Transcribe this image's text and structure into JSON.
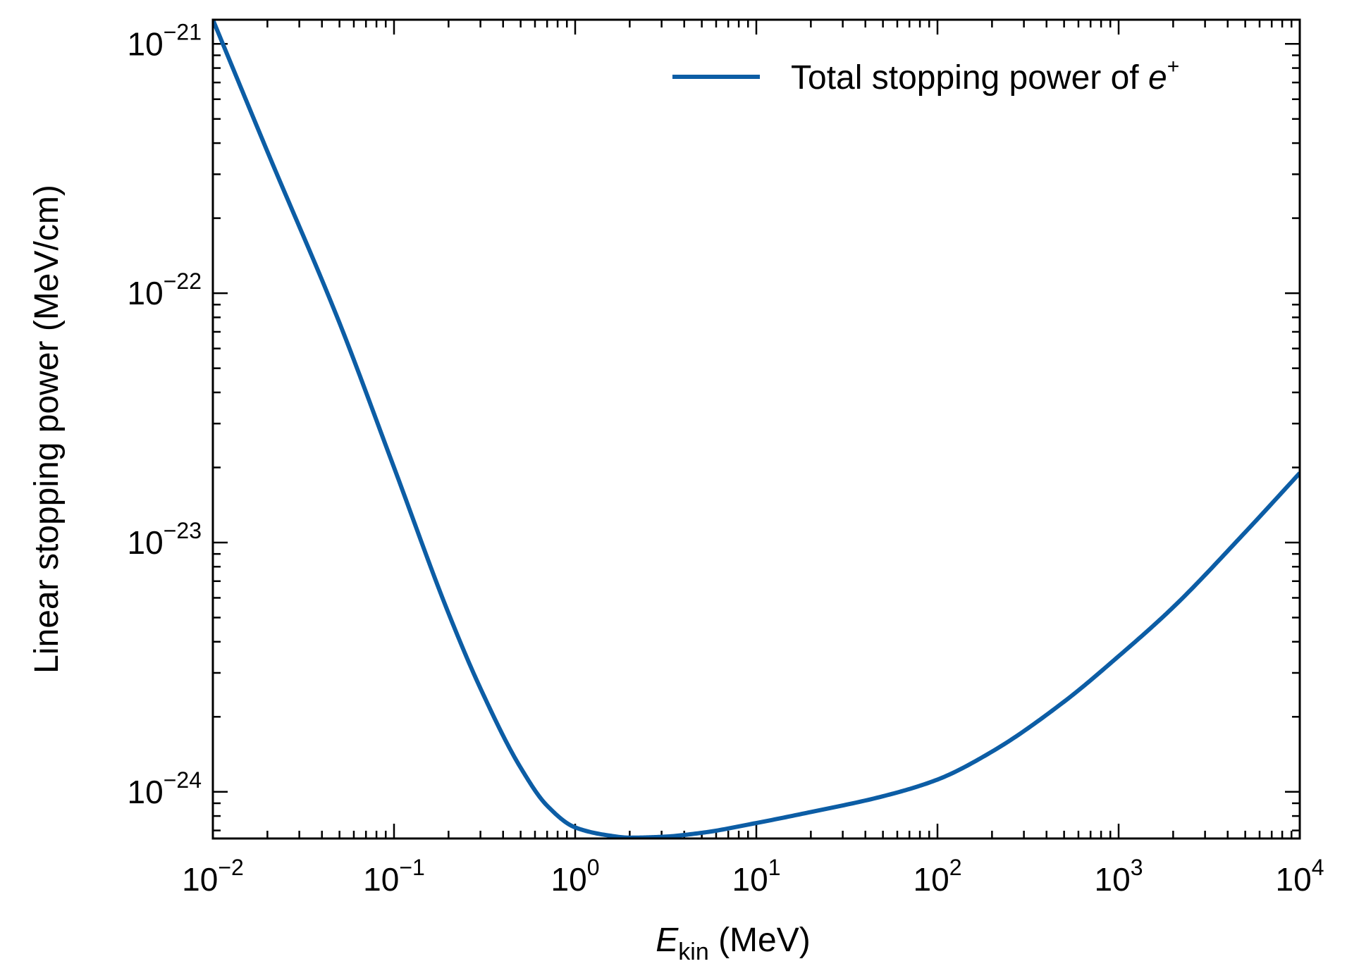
{
  "chart_data": {
    "type": "line",
    "title": "",
    "xlabel": {
      "main": "E",
      "sub": "kin",
      "unit": " (MeV)"
    },
    "ylabel": "Linear stopping power (MeV/cm)",
    "xscale": "log",
    "yscale": "log",
    "xlim": [
      0.01,
      10000
    ],
    "ylim": [
      6.5e-25,
      1.25e-21
    ],
    "grid": false,
    "legend_position": "top-right",
    "tick_direction": "in",
    "x_ticks": [
      {
        "base": "10",
        "exp": "−2",
        "value": 0.01
      },
      {
        "base": "10",
        "exp": "−1",
        "value": 0.1
      },
      {
        "base": "10",
        "exp": "0",
        "value": 1
      },
      {
        "base": "10",
        "exp": "1",
        "value": 10
      },
      {
        "base": "10",
        "exp": "2",
        "value": 100
      },
      {
        "base": "10",
        "exp": "3",
        "value": 1000
      },
      {
        "base": "10",
        "exp": "4",
        "value": 10000
      }
    ],
    "y_ticks": [
      {
        "base": "10",
        "exp": "−21",
        "value": 1e-21
      },
      {
        "base": "10",
        "exp": "−22",
        "value": 1e-22
      },
      {
        "base": "10",
        "exp": "−23",
        "value": 1e-23
      },
      {
        "base": "10",
        "exp": "−24",
        "value": 1e-24
      }
    ],
    "series": [
      {
        "name": "Total stopping power of e+",
        "legend_label": {
          "text": "Total stopping power of ",
          "symbol": "e",
          "sup": "+"
        },
        "color": "#0c5da5",
        "x": [
          0.01,
          0.02,
          0.05,
          0.1,
          0.2,
          0.3,
          0.5,
          0.7,
          1,
          1.5,
          2,
          3,
          5,
          10,
          20,
          50,
          100,
          200,
          500,
          1000,
          2000,
          5000,
          10000
        ],
        "y": [
          1.25e-21,
          3.7e-22,
          7.6e-23,
          2e-23,
          5.2e-24,
          2.6e-24,
          1.25e-24,
          8.8e-25,
          7.2e-25,
          6.7e-25,
          6.55e-25,
          6.6e-25,
          6.85e-25,
          7.5e-25,
          8.3e-25,
          9.6e-25,
          1.12e-24,
          1.45e-24,
          2.3e-24,
          3.5e-24,
          5.5e-24,
          1.1e-23,
          1.9e-23
        ]
      }
    ]
  }
}
